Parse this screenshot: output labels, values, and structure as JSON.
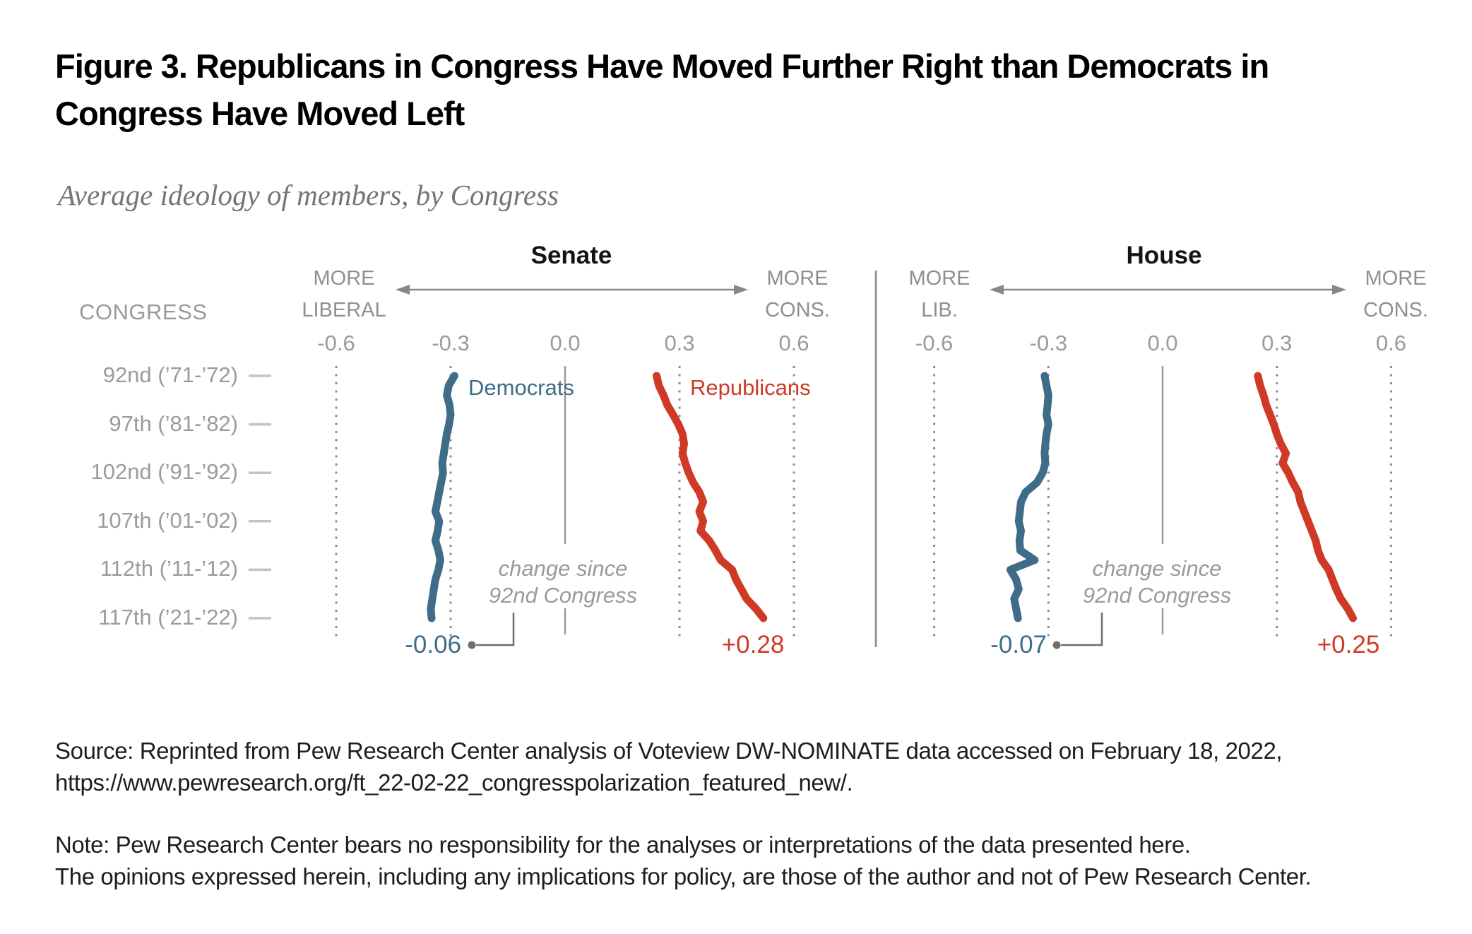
{
  "title_line1": "Figure 3. Republicans in Congress Have Moved Further Right than Democrats in",
  "title_line2": "Congress Have Moved Left",
  "subtitle": "Average ideology of members, by Congress",
  "left_column": {
    "header": "CONGRESS",
    "rows": [
      "92nd (’71-’72)",
      "97th (’81-’82)",
      "102nd (’91-’92)",
      "107th (’01-’02)",
      "112th (’11-’12)",
      "117th (’21-’22)"
    ]
  },
  "panels": [
    {
      "title": "Senate",
      "left_label_line1": "MORE",
      "left_label_line2": "LIBERAL",
      "right_label_line1": "MORE",
      "right_label_line2": "CONS.",
      "dem_series_label": "Democrats",
      "rep_series_label": "Republicans",
      "annotation_line1": "change since",
      "annotation_line2": "92nd Congress",
      "dem_change": "-0.06",
      "rep_change": "+0.28"
    },
    {
      "title": "House",
      "left_label_line1": "MORE",
      "left_label_line2": "LIB.",
      "right_label_line1": "MORE",
      "right_label_line2": "CONS.",
      "annotation_line1": "change since",
      "annotation_line2": "92nd Congress",
      "dem_change": "-0.07",
      "rep_change": "+0.25"
    }
  ],
  "colors": {
    "democrat_blue": "#3e6c89",
    "republican_red": "#cf3a26",
    "grid_gray": "#8d8d8d",
    "text_gray": "#9b9b9b",
    "callout_gray": "#6e6e6e"
  },
  "chart_data": [
    {
      "type": "line",
      "title": "Senate",
      "orientation": "vertical time axis (92nd Congress at top, 117th at bottom)",
      "xlabel_left": "MORE LIBERAL",
      "xlabel_right": "MORE CONS.",
      "xlim": [
        -0.75,
        0.75
      ],
      "x_ticks": [
        -0.6,
        -0.3,
        0,
        0.3,
        0.6
      ],
      "x_tick_labels": [
        "-0.6",
        "-0.3",
        "0.0",
        "0.3",
        "0.6"
      ],
      "grid": "dotted verticals at ±0.3 and ±0.6, solid at 0.0",
      "congresses": [
        92,
        93,
        94,
        95,
        96,
        97,
        98,
        99,
        100,
        101,
        102,
        103,
        104,
        105,
        106,
        107,
        108,
        109,
        110,
        111,
        112,
        113,
        114,
        115,
        116,
        117
      ],
      "series": [
        {
          "name": "Democrats",
          "color": "#3e6c89",
          "change_since_92nd": "-0.06",
          "values": [
            -0.29,
            -0.305,
            -0.31,
            -0.303,
            -0.3,
            -0.304,
            -0.31,
            -0.314,
            -0.318,
            -0.322,
            -0.32,
            -0.325,
            -0.33,
            -0.335,
            -0.34,
            -0.33,
            -0.334,
            -0.34,
            -0.332,
            -0.327,
            -0.332,
            -0.34,
            -0.344,
            -0.348,
            -0.352,
            -0.35
          ]
        },
        {
          "name": "Republicans",
          "color": "#cf3a26",
          "change_since_92nd": "+0.28",
          "values": [
            0.24,
            0.246,
            0.258,
            0.268,
            0.283,
            0.297,
            0.308,
            0.312,
            0.308,
            0.315,
            0.324,
            0.336,
            0.352,
            0.362,
            0.352,
            0.362,
            0.355,
            0.378,
            0.394,
            0.408,
            0.438,
            0.448,
            0.462,
            0.476,
            0.5,
            0.52
          ]
        }
      ],
      "annotation": "change since 92nd Congress"
    },
    {
      "type": "line",
      "title": "House",
      "orientation": "vertical time axis (92nd Congress at top, 117th at bottom)",
      "xlabel_left": "MORE LIB.",
      "xlabel_right": "MORE CONS.",
      "xlim": [
        -0.75,
        0.75
      ],
      "x_ticks": [
        -0.6,
        -0.3,
        0,
        0.3,
        0.6
      ],
      "x_tick_labels": [
        "-0.6",
        "-0.3",
        "0.0",
        "0.3",
        "0.6"
      ],
      "grid": "dotted verticals at ±0.3 and ±0.6, solid at 0.0",
      "congresses": [
        92,
        93,
        94,
        95,
        96,
        97,
        98,
        99,
        100,
        101,
        102,
        103,
        104,
        105,
        106,
        107,
        108,
        109,
        110,
        111,
        112,
        113,
        114,
        115,
        116,
        117
      ],
      "series": [
        {
          "name": "Democrats",
          "color": "#3e6c89",
          "change_since_92nd": "-0.07",
          "values": [
            -0.31,
            -0.305,
            -0.3,
            -0.302,
            -0.305,
            -0.3,
            -0.305,
            -0.308,
            -0.31,
            -0.308,
            -0.315,
            -0.33,
            -0.36,
            -0.372,
            -0.375,
            -0.378,
            -0.372,
            -0.376,
            -0.374,
            -0.336,
            -0.4,
            -0.385,
            -0.378,
            -0.39,
            -0.385,
            -0.38
          ]
        },
        {
          "name": "Republicans",
          "color": "#cf3a26",
          "change_since_92nd": "+0.25",
          "values": [
            0.25,
            0.256,
            0.265,
            0.272,
            0.282,
            0.292,
            0.3,
            0.31,
            0.324,
            0.315,
            0.33,
            0.342,
            0.356,
            0.362,
            0.372,
            0.382,
            0.392,
            0.402,
            0.408,
            0.418,
            0.436,
            0.446,
            0.456,
            0.468,
            0.486,
            0.5
          ]
        }
      ],
      "annotation": "change since 92nd Congress"
    }
  ],
  "source_line1": "Source: Reprinted from Pew Research Center analysis of Voteview DW-NOMINATE data accessed on February 18, 2022,",
  "source_line2": "https://www.pewresearch.org/ft_22-02-22_congresspolarization_featured_new/.",
  "note_line1": "Note: Pew Research Center bears no responsibility for the analyses or interpretations of the data presented here.",
  "note_line2": "The opinions expressed herein, including any implications for policy, are those of the author and not of Pew Research Center."
}
